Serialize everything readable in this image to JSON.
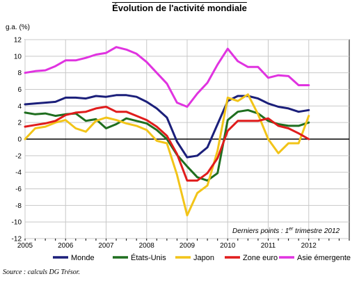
{
  "chart_data": {
    "type": "line",
    "title": "Évolution de l'activité mondiale",
    "ylabel": "g.a. (%)",
    "xlabel": "",
    "ylim": [
      -12,
      12
    ],
    "yticks": [
      -12,
      -10,
      -8,
      -6,
      -4,
      -2,
      0,
      2,
      4,
      6,
      8,
      10,
      12
    ],
    "xlim": [
      2005,
      2013
    ],
    "xticks": [
      "2005",
      "2006",
      "2007",
      "2008",
      "2009",
      "2010",
      "2011",
      "2012"
    ],
    "grid": true,
    "legend": "bottom",
    "annotation": {
      "pre": "Derniers points : 1",
      "sup": "er",
      "post": " trimestre 2012"
    },
    "series": [
      {
        "name": "Monde",
        "color": "#1b1f7a",
        "x": [
          2005.0,
          2005.25,
          2005.5,
          2005.75,
          2006.0,
          2006.25,
          2006.5,
          2006.75,
          2007.0,
          2007.25,
          2007.5,
          2007.75,
          2008.0,
          2008.25,
          2008.5,
          2008.75,
          2009.0,
          2009.25,
          2009.5,
          2009.75,
          2010.0,
          2010.25,
          2010.5,
          2010.75,
          2011.0,
          2011.25,
          2011.5,
          2011.75,
          2012.0
        ],
        "values": [
          4.2,
          4.3,
          4.4,
          4.5,
          5.0,
          5.0,
          4.9,
          5.2,
          5.1,
          5.3,
          5.3,
          5.1,
          4.5,
          3.7,
          2.6,
          -0.3,
          -2.2,
          -2.0,
          -1.0,
          1.8,
          4.6,
          5.2,
          5.2,
          4.9,
          4.3,
          3.9,
          3.7,
          3.3,
          3.5
        ]
      },
      {
        "name": "États-Unis",
        "color": "#1f6e1f",
        "x": [
          2005.0,
          2005.25,
          2005.5,
          2005.75,
          2006.0,
          2006.25,
          2006.5,
          2006.75,
          2007.0,
          2007.25,
          2007.5,
          2007.75,
          2008.0,
          2008.25,
          2008.5,
          2008.75,
          2009.0,
          2009.25,
          2009.5,
          2009.75,
          2010.0,
          2010.25,
          2010.5,
          2010.75,
          2011.0,
          2011.25,
          2011.5,
          2011.75,
          2012.0
        ],
        "values": [
          3.2,
          3.0,
          3.1,
          2.8,
          3.0,
          3.1,
          2.2,
          2.4,
          1.3,
          1.8,
          2.5,
          2.2,
          1.9,
          1.1,
          0.0,
          -1.9,
          -3.3,
          -4.6,
          -5.0,
          -4.1,
          2.3,
          3.3,
          3.5,
          3.1,
          2.2,
          1.8,
          1.6,
          1.6,
          2.0
        ]
      },
      {
        "name": "Japon",
        "color": "#f2c418",
        "x": [
          2005.0,
          2005.25,
          2005.5,
          2005.75,
          2006.0,
          2006.25,
          2006.5,
          2006.75,
          2007.0,
          2007.25,
          2007.5,
          2007.75,
          2008.0,
          2008.25,
          2008.5,
          2008.75,
          2009.0,
          2009.25,
          2009.5,
          2009.75,
          2010.0,
          2010.25,
          2010.5,
          2010.75,
          2011.0,
          2011.25,
          2011.5,
          2011.75,
          2012.0
        ],
        "values": [
          0.0,
          1.3,
          1.5,
          2.0,
          2.3,
          1.3,
          0.9,
          2.2,
          2.6,
          2.3,
          1.9,
          1.6,
          1.1,
          -0.2,
          -0.5,
          -4.3,
          -9.2,
          -6.5,
          -5.6,
          -1.4,
          5.0,
          4.6,
          5.4,
          3.0,
          0.0,
          -1.7,
          -0.5,
          -0.5,
          2.8
        ]
      },
      {
        "name": "Zone euro",
        "color": "#e01c1c",
        "x": [
          2005.0,
          2005.25,
          2005.5,
          2005.75,
          2006.0,
          2006.25,
          2006.5,
          2006.75,
          2007.0,
          2007.25,
          2007.5,
          2007.75,
          2008.0,
          2008.25,
          2008.5,
          2008.75,
          2009.0,
          2009.25,
          2009.5,
          2009.75,
          2010.0,
          2010.25,
          2010.5,
          2010.75,
          2011.0,
          2011.25,
          2011.5,
          2011.75,
          2012.0
        ],
        "values": [
          1.5,
          1.7,
          1.9,
          2.2,
          2.9,
          3.2,
          3.3,
          3.7,
          3.9,
          3.3,
          3.3,
          2.8,
          2.3,
          1.5,
          0.4,
          -1.8,
          -5.0,
          -5.0,
          -4.1,
          -2.3,
          1.0,
          2.2,
          2.2,
          2.2,
          2.5,
          1.6,
          1.3,
          0.7,
          0.0
        ]
      },
      {
        "name": "Asie émergente",
        "color": "#e033e0",
        "x": [
          2005.0,
          2005.25,
          2005.5,
          2005.75,
          2006.0,
          2006.25,
          2006.5,
          2006.75,
          2007.0,
          2007.25,
          2007.5,
          2007.75,
          2008.0,
          2008.25,
          2008.5,
          2008.75,
          2009.0,
          2009.25,
          2009.5,
          2009.75,
          2010.0,
          2010.25,
          2010.5,
          2010.75,
          2011.0,
          2011.25,
          2011.5,
          2011.75,
          2012.0
        ],
        "values": [
          8.0,
          8.2,
          8.3,
          8.8,
          9.5,
          9.5,
          9.8,
          10.2,
          10.4,
          11.1,
          10.8,
          10.3,
          9.3,
          8.0,
          6.7,
          4.4,
          3.9,
          5.5,
          6.8,
          9.0,
          10.9,
          9.4,
          8.7,
          8.7,
          7.4,
          7.7,
          7.6,
          6.5,
          6.5
        ]
      }
    ]
  },
  "source": "Source : calculs DG Trésor."
}
